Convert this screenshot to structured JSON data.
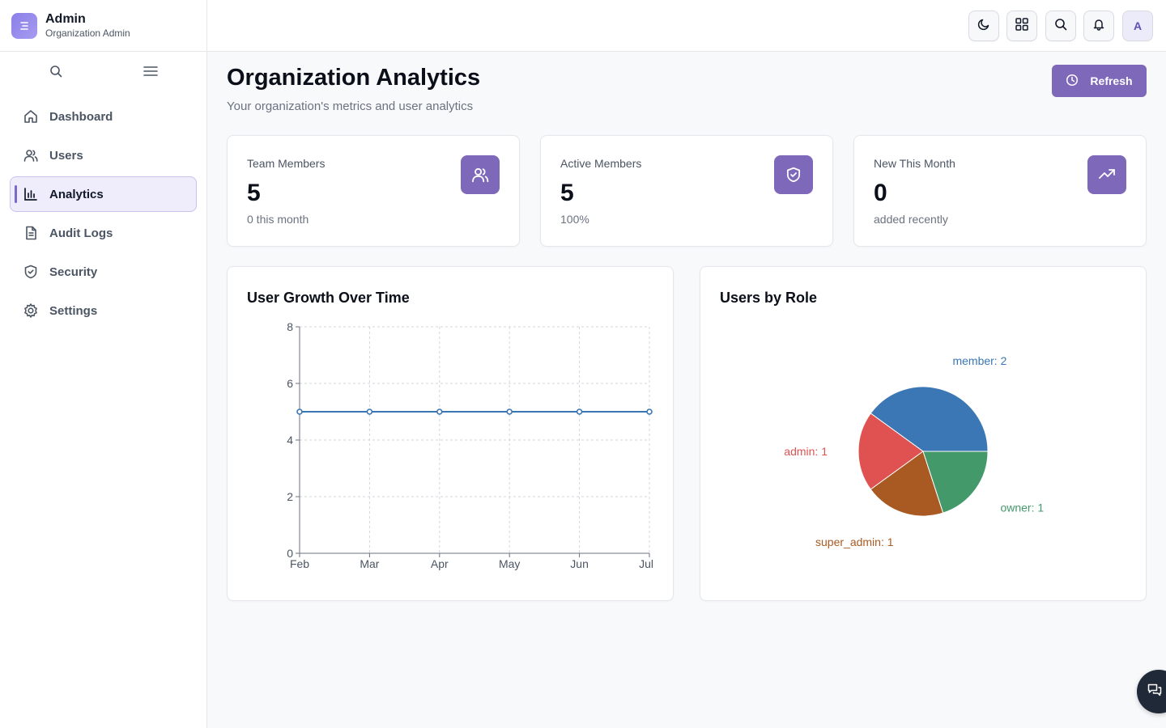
{
  "brand": {
    "title": "Admin",
    "subtitle": "Organization Admin"
  },
  "sidebar": {
    "items": [
      {
        "label": "Dashboard",
        "icon": "home-icon",
        "active": false
      },
      {
        "label": "Users",
        "icon": "users-icon",
        "active": false
      },
      {
        "label": "Analytics",
        "icon": "bar-chart-icon",
        "active": true
      },
      {
        "label": "Audit Logs",
        "icon": "document-icon",
        "active": false
      },
      {
        "label": "Security",
        "icon": "shield-icon",
        "active": false
      },
      {
        "label": "Settings",
        "icon": "gear-icon",
        "active": false
      }
    ]
  },
  "topbar": {
    "avatar_initial": "A"
  },
  "page": {
    "title": "Organization Analytics",
    "subtitle": "Your organization's metrics and user analytics",
    "refresh_label": "Refresh"
  },
  "stats": [
    {
      "label": "Team Members",
      "value": "5",
      "note": "0 this month",
      "icon": "users-icon"
    },
    {
      "label": "Active Members",
      "value": "5",
      "note": "100%",
      "icon": "shield-check-icon"
    },
    {
      "label": "New This Month",
      "value": "0",
      "note": "added recently",
      "icon": "trending-up-icon"
    }
  ],
  "colors": {
    "accent": "#7e68b9",
    "line": "#3b76b4",
    "member": "#3a77b4",
    "admin": "#e05252",
    "super_admin": "#a95a22",
    "owner": "#44996a"
  },
  "chart_data": [
    {
      "type": "line",
      "title": "User Growth Over Time",
      "x": [
        "Feb",
        "Mar",
        "Apr",
        "May",
        "Jun",
        "Jul"
      ],
      "series": [
        {
          "values": [
            5,
            5,
            5,
            5,
            5,
            5
          ]
        }
      ],
      "ylim": [
        0,
        8
      ],
      "yticks": [
        0,
        2,
        4,
        6,
        8
      ],
      "grid": true
    },
    {
      "type": "pie",
      "title": "Users by Role",
      "slices": [
        {
          "label": "member",
          "value": 2,
          "text": "member: 2"
        },
        {
          "label": "admin",
          "value": 1,
          "text": "admin: 1"
        },
        {
          "label": "super_admin",
          "value": 1,
          "text": "super_admin: 1"
        },
        {
          "label": "owner",
          "value": 1,
          "text": "owner: 1"
        }
      ]
    }
  ]
}
